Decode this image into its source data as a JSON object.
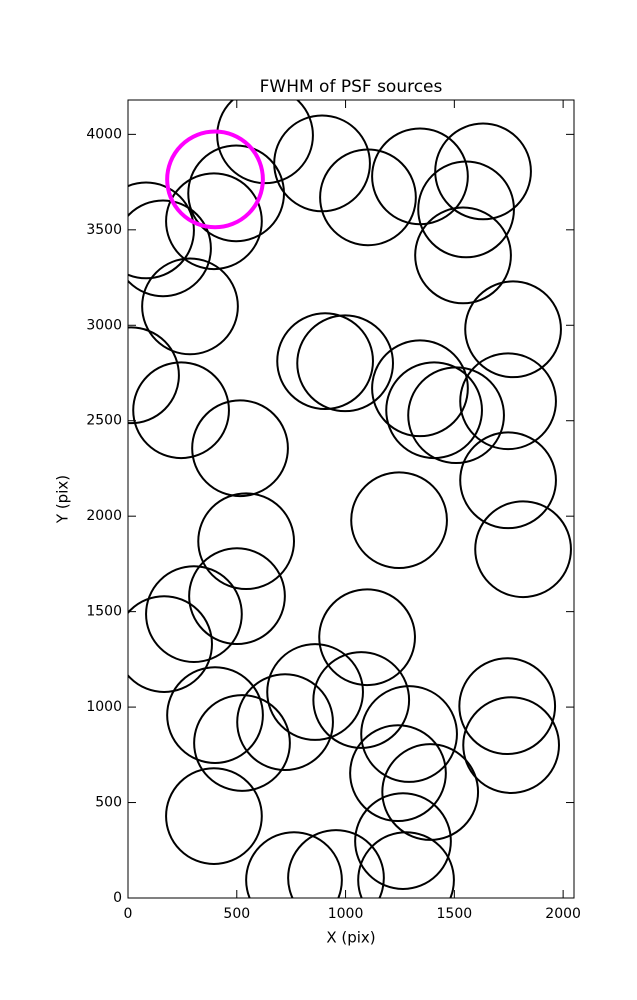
{
  "chart_data": {
    "type": "scatter",
    "title": "FWHM of PSF sources",
    "x_label": "X (pix)",
    "y_label": "Y (pix)",
    "xlim": [
      0,
      2050
    ],
    "ylim": [
      0,
      4180
    ],
    "xticks": [
      0,
      500,
      1000,
      1500,
      2000
    ],
    "yticks": [
      0,
      500,
      1000,
      1500,
      2000,
      2500,
      3000,
      3500,
      4000
    ],
    "marker": "circle",
    "marker_radius": 220,
    "series": [
      {
        "color": "#000000",
        "linewidth": 2,
        "x": [
          630,
          892,
          1103,
          1342,
          1632,
          1554,
          1540,
          1770,
          497,
          395,
          83,
          161,
          285,
          14,
          244,
          515,
          906,
          998,
          1342,
          1407,
          1508,
          1747,
          1747,
          1246,
          1816,
          543,
          501,
          303,
          166,
          1099,
          860,
          1072,
          400,
          722,
          524,
          1292,
          1743,
          1761,
          1241,
          1389,
          395,
          1264,
          1278,
          956,
          763
        ],
        "values": [
          3995,
          3848,
          3670,
          3780,
          3806,
          3607,
          3366,
          2979,
          3691,
          3545,
          3497,
          3403,
          3099,
          2738,
          2555,
          2356,
          2812,
          2801,
          2670,
          2555,
          2529,
          2602,
          2188,
          1979,
          1827,
          1869,
          1581,
          1487,
          1330,
          1366,
          1079,
          1037,
          958,
          921,
          812,
          859,
          1005,
          801,
          654,
          555,
          429,
          298,
          94,
          105,
          94
        ]
      },
      {
        "color": "#ff00ff",
        "linewidth": 4,
        "x": [
          400
        ],
        "values": [
          3764
        ]
      }
    ]
  }
}
